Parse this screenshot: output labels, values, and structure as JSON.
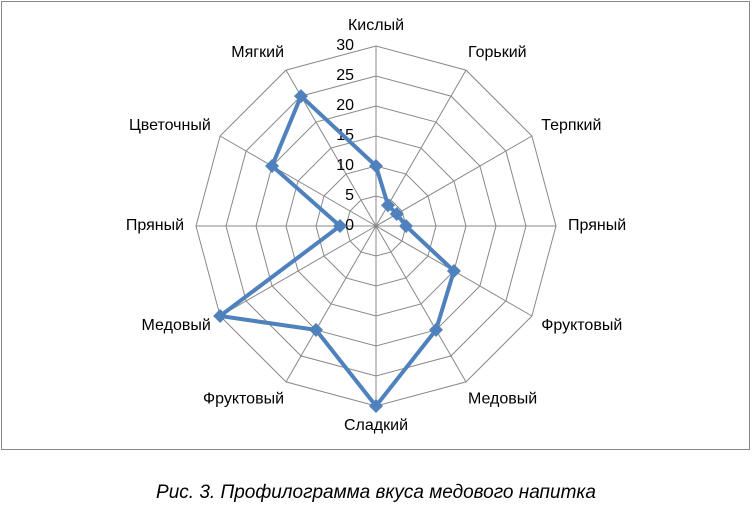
{
  "chart_data": {
    "type": "radar",
    "caption": "Рис. 3. Профилограмма вкуса медового напитка",
    "categories": [
      "Кислый",
      "Горький",
      "Терпкий",
      "Пряный",
      "Фруктовый",
      "Медовый",
      "Сладкий",
      "Фруктовый",
      "Медовый",
      "Пряный",
      "Цветочный",
      "Мягкий"
    ],
    "values": [
      10,
      4,
      4,
      5,
      15,
      20,
      30,
      20,
      30,
      6,
      20,
      25
    ],
    "color": "#4f81bd",
    "ylim": [
      0,
      30
    ],
    "yticks": [
      0,
      5,
      10,
      15,
      20,
      25,
      30
    ],
    "grid": true
  }
}
